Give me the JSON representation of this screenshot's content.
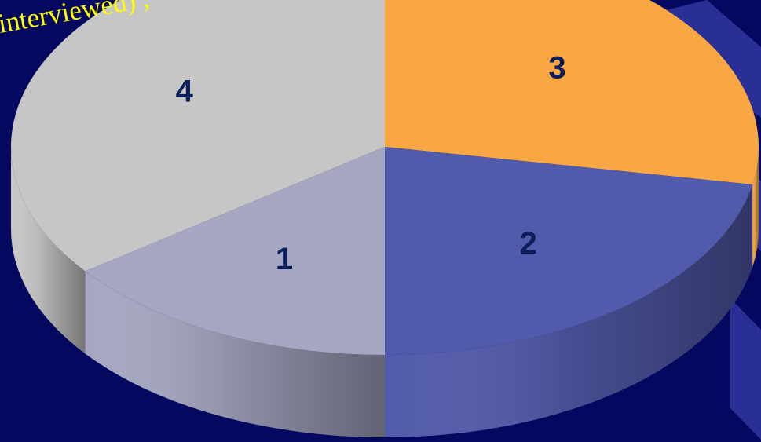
{
  "caption": "interviewed) ,",
  "colors": {
    "background": "#05085f",
    "decoration": "#2a2f96",
    "caption": "#ffff00",
    "label": "#0b1f5a",
    "slice_1": "#a5a6c1",
    "slice_2": "#525bab",
    "slice_3": "#f8a743",
    "slice_4": "#c6c6c6"
  },
  "chart_data": {
    "type": "pie",
    "style": "3d",
    "start": "12 o'clock",
    "direction": "clockwise",
    "slices": [
      {
        "label": "3",
        "value": 0.279
      },
      {
        "label": "2",
        "value": 0.221
      },
      {
        "label": "1",
        "value": 0.148
      },
      {
        "label": "4",
        "value": 0.352
      }
    ]
  }
}
